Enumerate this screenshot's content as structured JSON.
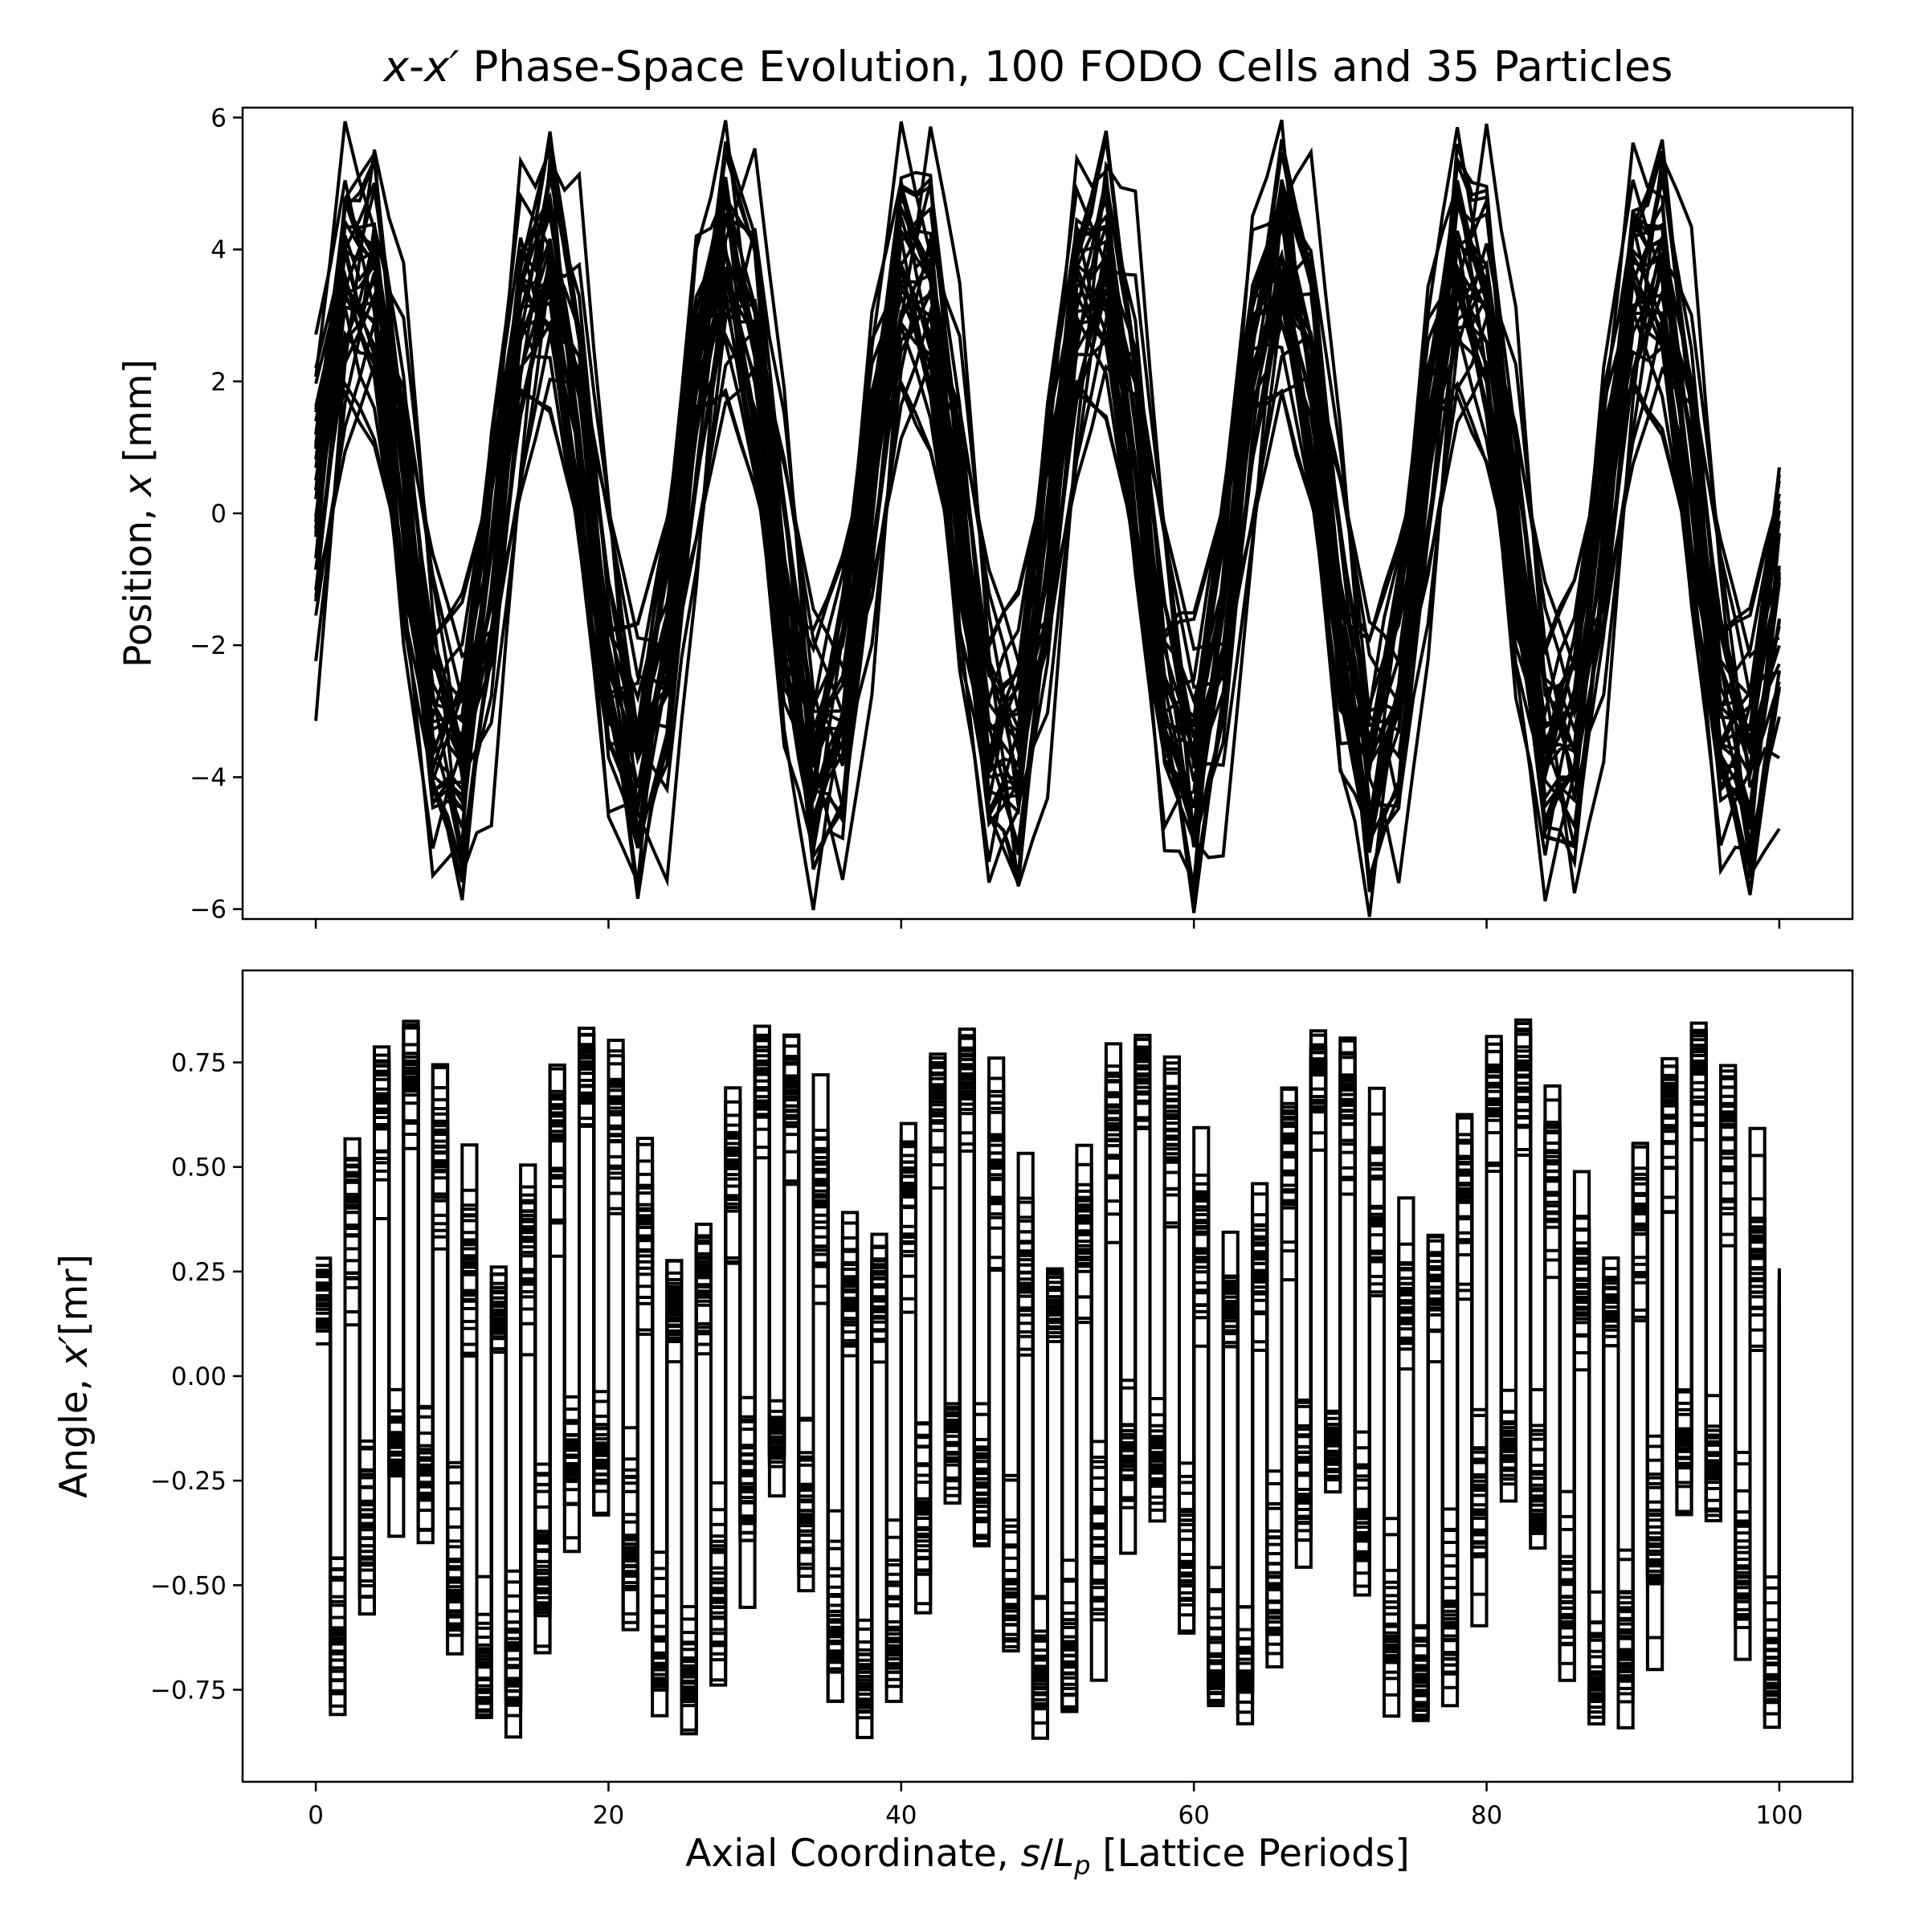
{
  "chart_data": [
    {
      "type": "line",
      "title": "x-x′ Phase-Space Evolution, 100 FODO Cells and 35 Particles",
      "title_parts": {
        "var1": "x",
        "sep": "-",
        "var2": "x",
        "prime": "′",
        "rest": " Phase-Space Evolution, 100 FODO Cells and 35 Particles"
      },
      "ylabel": "Position, x [mm]",
      "ylabel_parts": {
        "prefix": "Position, ",
        "var": "x",
        "suffix": " [mm]"
      },
      "xlabel": "",
      "xlim": [
        -5,
        105
      ],
      "ylim": [
        -6.15,
        6.15
      ],
      "yticks": [
        -6,
        -4,
        -2,
        0,
        2,
        4,
        6
      ],
      "ytick_labels": [
        "−6",
        "−4",
        "−2",
        "0",
        "2",
        "4",
        "6"
      ],
      "xticks": [
        0,
        20,
        40,
        60,
        80,
        100
      ],
      "xtick_labels": [
        "",
        "",
        "",
        "",
        "",
        ""
      ],
      "grid": false,
      "legend": "none",
      "line_color": "#000000",
      "x_range": [
        0,
        100
      ],
      "points_per_series": 101,
      "series_count": 35,
      "oscillation_period_periods": 12.6,
      "amplitude_range": [
        0.9,
        5.6
      ],
      "fodo_ripple": 0.08
    },
    {
      "type": "line",
      "xlabel": "Axial Coordinate, s/Lp [Lattice Periods]",
      "xlabel_parts": {
        "prefix": "Axial Coordinate, ",
        "var_s": "s",
        "slash": "/",
        "var_L": "L",
        "sub": "p",
        "suffix": " [Lattice Periods]"
      },
      "ylabel": "Angle, x′[mr]",
      "ylabel_parts": {
        "prefix": "Angle, ",
        "var": "x",
        "prime": "′",
        "suffix": "[mr]"
      },
      "xlim": [
        -5,
        105
      ],
      "ylim": [
        -0.97,
        0.97
      ],
      "yticks": [
        -0.75,
        -0.5,
        -0.25,
        0,
        0.25,
        0.5,
        0.75
      ],
      "ytick_labels": [
        "−0.75",
        "−0.50",
        "−0.25",
        "0.00",
        "0.25",
        "0.50",
        "0.75"
      ],
      "xticks": [
        0,
        20,
        40,
        60,
        80,
        100
      ],
      "xtick_labels": [
        "0",
        "20",
        "40",
        "60",
        "80",
        "100"
      ],
      "grid": false,
      "legend": "none",
      "line_color": "#000000",
      "x_range": [
        0,
        100
      ],
      "points_per_series": 101,
      "series_count": 35,
      "envelope_period_periods": 12.6,
      "angle_max": 0.88,
      "angle_min": -0.88
    }
  ]
}
